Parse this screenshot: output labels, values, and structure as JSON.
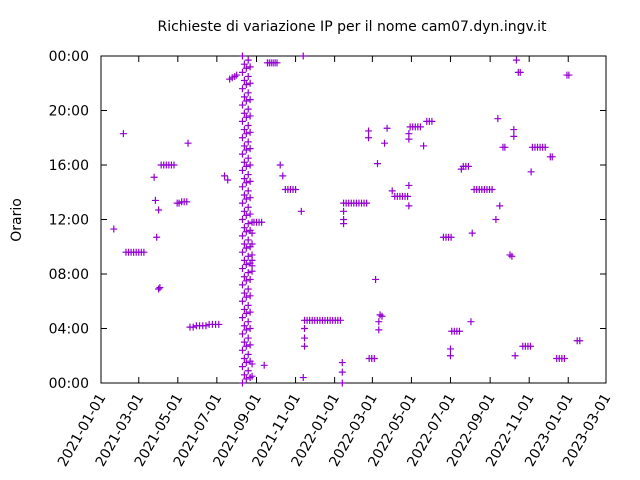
{
  "chart_data": {
    "type": "scatter",
    "title": "Richieste di variazione IP per il nome cam07.dyn.ingv.it",
    "xlabel": "",
    "ylabel": "Orario",
    "x_range": [
      "2021-01-01",
      "2023-03-01"
    ],
    "y_range": [
      0,
      24
    ],
    "x_ticks": [
      "2021-01-01",
      "2021-03-01",
      "2021-05-01",
      "2021-07-01",
      "2021-09-01",
      "2021-11-01",
      "2022-01-01",
      "2022-03-01",
      "2022-05-01",
      "2022-07-01",
      "2022-09-01",
      "2022-11-01",
      "2023-01-01",
      "2023-03-01"
    ],
    "y_ticks": [
      {
        "value": 0,
        "label": "00:00"
      },
      {
        "value": 4,
        "label": "04:00"
      },
      {
        "value": 8,
        "label": "08:00"
      },
      {
        "value": 12,
        "label": "12:00"
      },
      {
        "value": 16,
        "label": "16:00"
      },
      {
        "value": 20,
        "label": "20:00"
      },
      {
        "value": 24,
        "label": "00:00"
      }
    ],
    "grid": false,
    "marker": "plus",
    "color": "#9400d3",
    "points": [
      [
        "2021-01-21",
        11.3
      ],
      [
        "2021-02-05",
        18.3
      ],
      [
        "2021-02-09",
        9.6
      ],
      [
        "2021-02-13",
        9.6
      ],
      [
        "2021-02-17",
        9.6
      ],
      [
        "2021-02-21",
        9.6
      ],
      [
        "2021-02-25",
        9.6
      ],
      [
        "2021-03-01",
        9.6
      ],
      [
        "2021-03-05",
        9.6
      ],
      [
        "2021-03-09",
        9.6
      ],
      [
        "2021-03-25",
        15.1
      ],
      [
        "2021-03-27",
        13.4
      ],
      [
        "2021-03-29",
        10.7
      ],
      [
        "2021-04-01",
        12.7
      ],
      [
        "2021-04-01",
        6.9
      ],
      [
        "2021-04-03",
        7.0
      ],
      [
        "2021-04-05",
        16.0
      ],
      [
        "2021-04-09",
        16.0
      ],
      [
        "2021-04-13",
        16.0
      ],
      [
        "2021-04-17",
        16.0
      ],
      [
        "2021-04-21",
        16.0
      ],
      [
        "2021-04-25",
        16.0
      ],
      [
        "2021-04-30",
        13.2
      ],
      [
        "2021-05-03",
        13.2
      ],
      [
        "2021-05-07",
        13.3
      ],
      [
        "2021-05-11",
        13.3
      ],
      [
        "2021-05-15",
        13.3
      ],
      [
        "2021-05-17",
        17.6
      ],
      [
        "2021-05-20",
        4.1
      ],
      [
        "2021-05-25",
        4.1
      ],
      [
        "2021-05-30",
        4.2
      ],
      [
        "2021-06-04",
        4.2
      ],
      [
        "2021-06-09",
        4.2
      ],
      [
        "2021-06-14",
        4.2
      ],
      [
        "2021-06-19",
        4.3
      ],
      [
        "2021-06-24",
        4.3
      ],
      [
        "2021-06-29",
        4.3
      ],
      [
        "2021-07-04",
        4.3
      ],
      [
        "2021-07-13",
        15.2
      ],
      [
        "2021-07-18",
        14.9
      ],
      [
        "2021-07-21",
        22.3
      ],
      [
        "2021-07-25",
        22.4
      ],
      [
        "2021-07-29",
        22.5
      ],
      [
        "2021-08-01",
        22.6
      ],
      [
        "2021-08-10",
        0.0
      ],
      [
        "2021-08-10",
        1.2
      ],
      [
        "2021-08-10",
        2.4
      ],
      [
        "2021-08-10",
        3.6
      ],
      [
        "2021-08-10",
        4.8
      ],
      [
        "2021-08-10",
        6.0
      ],
      [
        "2021-08-10",
        7.2
      ],
      [
        "2021-08-10",
        8.4
      ],
      [
        "2021-08-10",
        9.6
      ],
      [
        "2021-08-10",
        10.8
      ],
      [
        "2021-08-10",
        12.0
      ],
      [
        "2021-08-10",
        13.2
      ],
      [
        "2021-08-10",
        14.4
      ],
      [
        "2021-08-10",
        15.6
      ],
      [
        "2021-08-10",
        16.8
      ],
      [
        "2021-08-10",
        18.0
      ],
      [
        "2021-08-10",
        19.2
      ],
      [
        "2021-08-10",
        20.4
      ],
      [
        "2021-08-10",
        21.6
      ],
      [
        "2021-08-10",
        22.8
      ],
      [
        "2021-08-10",
        24.0
      ],
      [
        "2021-08-13",
        0.6
      ],
      [
        "2021-08-13",
        1.8
      ],
      [
        "2021-08-13",
        3.0
      ],
      [
        "2021-08-13",
        4.2
      ],
      [
        "2021-08-13",
        5.4
      ],
      [
        "2021-08-13",
        6.6
      ],
      [
        "2021-08-13",
        7.8
      ],
      [
        "2021-08-13",
        9.0
      ],
      [
        "2021-08-13",
        10.2
      ],
      [
        "2021-08-13",
        11.4
      ],
      [
        "2021-08-13",
        12.6
      ],
      [
        "2021-08-13",
        13.8
      ],
      [
        "2021-08-13",
        15.0
      ],
      [
        "2021-08-13",
        16.2
      ],
      [
        "2021-08-13",
        17.4
      ],
      [
        "2021-08-13",
        18.6
      ],
      [
        "2021-08-13",
        19.8
      ],
      [
        "2021-08-13",
        21.0
      ],
      [
        "2021-08-13",
        22.2
      ],
      [
        "2021-08-13",
        23.4
      ],
      [
        "2021-08-16",
        0.3
      ],
      [
        "2021-08-16",
        1.5
      ],
      [
        "2021-08-16",
        2.7
      ],
      [
        "2021-08-16",
        3.9
      ],
      [
        "2021-08-16",
        5.1
      ],
      [
        "2021-08-16",
        6.3
      ],
      [
        "2021-08-16",
        7.5
      ],
      [
        "2021-08-16",
        8.7
      ],
      [
        "2021-08-16",
        9.9
      ],
      [
        "2021-08-16",
        11.1
      ],
      [
        "2021-08-16",
        12.3
      ],
      [
        "2021-08-16",
        13.5
      ],
      [
        "2021-08-16",
        14.7
      ],
      [
        "2021-08-16",
        15.9
      ],
      [
        "2021-08-16",
        17.1
      ],
      [
        "2021-08-16",
        18.3
      ],
      [
        "2021-08-16",
        19.5
      ],
      [
        "2021-08-16",
        20.7
      ],
      [
        "2021-08-16",
        21.9
      ],
      [
        "2021-08-16",
        23.1
      ],
      [
        "2021-08-19",
        0.9
      ],
      [
        "2021-08-19",
        2.1
      ],
      [
        "2021-08-19",
        3.3
      ],
      [
        "2021-08-19",
        4.5
      ],
      [
        "2021-08-19",
        5.7
      ],
      [
        "2021-08-19",
        6.9
      ],
      [
        "2021-08-19",
        8.1
      ],
      [
        "2021-08-19",
        9.3
      ],
      [
        "2021-08-19",
        10.5
      ],
      [
        "2021-08-19",
        11.7
      ],
      [
        "2021-08-19",
        12.9
      ],
      [
        "2021-08-19",
        14.1
      ],
      [
        "2021-08-19",
        15.3
      ],
      [
        "2021-08-19",
        16.5
      ],
      [
        "2021-08-19",
        17.7
      ],
      [
        "2021-08-19",
        18.9
      ],
      [
        "2021-08-19",
        20.1
      ],
      [
        "2021-08-19",
        21.3
      ],
      [
        "2021-08-19",
        22.5
      ],
      [
        "2021-08-19",
        23.7
      ],
      [
        "2021-08-22",
        0.4
      ],
      [
        "2021-08-22",
        1.6
      ],
      [
        "2021-08-22",
        2.8
      ],
      [
        "2021-08-22",
        4.0
      ],
      [
        "2021-08-22",
        5.2
      ],
      [
        "2021-08-22",
        6.4
      ],
      [
        "2021-08-22",
        7.6
      ],
      [
        "2021-08-22",
        8.8
      ],
      [
        "2021-08-22",
        10.0
      ],
      [
        "2021-08-22",
        11.2
      ],
      [
        "2021-08-22",
        12.4
      ],
      [
        "2021-08-22",
        13.6
      ],
      [
        "2021-08-22",
        14.8
      ],
      [
        "2021-08-22",
        16.0
      ],
      [
        "2021-08-22",
        17.2
      ],
      [
        "2021-08-22",
        18.4
      ],
      [
        "2021-08-22",
        19.6
      ],
      [
        "2021-08-22",
        20.8
      ],
      [
        "2021-08-22",
        22.0
      ],
      [
        "2021-08-22",
        23.2
      ],
      [
        "2021-08-25",
        8.2
      ],
      [
        "2021-08-25",
        8.6
      ],
      [
        "2021-08-25",
        9.0
      ],
      [
        "2021-08-25",
        9.4
      ],
      [
        "2021-08-25",
        10.2
      ],
      [
        "2021-08-25",
        11.0
      ],
      [
        "2021-08-25",
        11.8
      ],
      [
        "2021-08-25",
        0.5
      ],
      [
        "2021-08-25",
        1.4
      ],
      [
        "2021-08-28",
        11.8
      ],
      [
        "2021-09-01",
        11.8
      ],
      [
        "2021-09-05",
        11.8
      ],
      [
        "2021-09-09",
        11.8
      ],
      [
        "2021-09-13",
        1.3
      ],
      [
        "2021-09-18",
        23.5
      ],
      [
        "2021-09-21",
        23.5
      ],
      [
        "2021-09-24",
        23.5
      ],
      [
        "2021-09-27",
        23.5
      ],
      [
        "2021-09-30",
        23.5
      ],
      [
        "2021-10-03",
        23.5
      ],
      [
        "2021-10-08",
        16.0
      ],
      [
        "2021-10-12",
        15.2
      ],
      [
        "2021-10-16",
        14.2
      ],
      [
        "2021-10-20",
        14.2
      ],
      [
        "2021-10-24",
        14.2
      ],
      [
        "2021-10-28",
        14.2
      ],
      [
        "2021-11-01",
        14.2
      ],
      [
        "2021-11-10",
        12.6
      ],
      [
        "2021-11-13",
        0.4
      ],
      [
        "2021-11-13",
        24.0
      ],
      [
        "2021-11-15",
        4.6
      ],
      [
        "2021-11-19",
        4.6
      ],
      [
        "2021-11-23",
        4.6
      ],
      [
        "2021-11-27",
        4.6
      ],
      [
        "2021-12-01",
        4.6
      ],
      [
        "2021-12-05",
        4.6
      ],
      [
        "2021-12-09",
        4.6
      ],
      [
        "2021-12-13",
        4.6
      ],
      [
        "2021-12-17",
        4.6
      ],
      [
        "2021-12-21",
        4.6
      ],
      [
        "2021-12-25",
        4.6
      ],
      [
        "2021-12-29",
        4.6
      ],
      [
        "2022-01-02",
        4.6
      ],
      [
        "2022-01-06",
        4.6
      ],
      [
        "2022-01-10",
        4.6
      ],
      [
        "2021-11-15",
        4.0
      ],
      [
        "2021-11-15",
        3.3
      ],
      [
        "2021-11-15",
        2.7
      ],
      [
        "2022-01-13",
        1.5
      ],
      [
        "2022-01-13",
        0.8
      ],
      [
        "2022-01-13",
        0.0
      ],
      [
        "2022-01-15",
        13.2
      ],
      [
        "2022-01-19",
        13.2
      ],
      [
        "2022-01-23",
        13.2
      ],
      [
        "2022-01-27",
        13.2
      ],
      [
        "2022-01-31",
        13.2
      ],
      [
        "2022-02-04",
        13.2
      ],
      [
        "2022-02-08",
        13.2
      ],
      [
        "2022-02-12",
        13.2
      ],
      [
        "2022-02-16",
        13.2
      ],
      [
        "2022-02-20",
        13.2
      ],
      [
        "2022-01-15",
        12.6
      ],
      [
        "2022-01-15",
        12.0
      ],
      [
        "2022-01-15",
        11.7
      ],
      [
        "2022-02-23",
        18.5
      ],
      [
        "2022-02-23",
        18.0
      ],
      [
        "2022-02-24",
        1.8
      ],
      [
        "2022-02-28",
        1.8
      ],
      [
        "2022-03-04",
        1.8
      ],
      [
        "2022-03-06",
        7.6
      ],
      [
        "2022-03-09",
        16.1
      ],
      [
        "2022-03-11",
        4.5
      ],
      [
        "2022-03-11",
        3.9
      ],
      [
        "2022-03-13",
        5.0
      ],
      [
        "2022-03-16",
        4.9
      ],
      [
        "2022-03-20",
        17.6
      ],
      [
        "2022-03-24",
        18.7
      ],
      [
        "2022-04-01",
        14.1
      ],
      [
        "2022-04-05",
        13.7
      ],
      [
        "2022-04-09",
        13.7
      ],
      [
        "2022-04-13",
        13.7
      ],
      [
        "2022-04-17",
        13.7
      ],
      [
        "2022-04-21",
        13.7
      ],
      [
        "2022-04-25",
        13.7
      ],
      [
        "2022-04-27",
        14.5
      ],
      [
        "2022-04-27",
        13.0
      ],
      [
        "2022-04-27",
        18.3
      ],
      [
        "2022-04-27",
        17.9
      ],
      [
        "2022-04-29",
        18.8
      ],
      [
        "2022-05-03",
        18.8
      ],
      [
        "2022-05-07",
        18.8
      ],
      [
        "2022-05-11",
        18.8
      ],
      [
        "2022-05-15",
        18.8
      ],
      [
        "2022-05-20",
        17.4
      ],
      [
        "2022-05-25",
        19.2
      ],
      [
        "2022-05-29",
        19.2
      ],
      [
        "2022-06-02",
        19.2
      ],
      [
        "2022-06-20",
        10.7
      ],
      [
        "2022-06-24",
        10.7
      ],
      [
        "2022-06-28",
        10.7
      ],
      [
        "2022-07-02",
        10.7
      ],
      [
        "2022-07-01",
        2.5
      ],
      [
        "2022-07-01",
        2.0
      ],
      [
        "2022-07-03",
        3.8
      ],
      [
        "2022-07-07",
        3.8
      ],
      [
        "2022-07-11",
        3.8
      ],
      [
        "2022-07-15",
        3.8
      ],
      [
        "2022-07-18",
        15.7
      ],
      [
        "2022-07-21",
        15.9
      ],
      [
        "2022-07-25",
        15.9
      ],
      [
        "2022-07-29",
        15.9
      ],
      [
        "2022-08-02",
        4.5
      ],
      [
        "2022-08-04",
        11.0
      ],
      [
        "2022-08-07",
        14.2
      ],
      [
        "2022-08-11",
        14.2
      ],
      [
        "2022-08-15",
        14.2
      ],
      [
        "2022-08-19",
        14.2
      ],
      [
        "2022-08-23",
        14.2
      ],
      [
        "2022-08-27",
        14.2
      ],
      [
        "2022-08-31",
        14.2
      ],
      [
        "2022-09-04",
        14.2
      ],
      [
        "2022-09-10",
        12.0
      ],
      [
        "2022-09-13",
        19.4
      ],
      [
        "2022-09-16",
        13.0
      ],
      [
        "2022-09-21",
        17.3
      ],
      [
        "2022-09-24",
        17.3
      ],
      [
        "2022-10-02",
        9.4
      ],
      [
        "2022-10-05",
        9.3
      ],
      [
        "2022-10-08",
        18.6
      ],
      [
        "2022-10-08",
        18.1
      ],
      [
        "2022-10-10",
        2.0
      ],
      [
        "2022-10-12",
        23.7
      ],
      [
        "2022-10-15",
        22.8
      ],
      [
        "2022-10-18",
        22.8
      ],
      [
        "2022-10-22",
        2.7
      ],
      [
        "2022-10-26",
        2.7
      ],
      [
        "2022-10-30",
        2.7
      ],
      [
        "2022-11-03",
        2.7
      ],
      [
        "2022-11-04",
        15.5
      ],
      [
        "2022-11-06",
        17.3
      ],
      [
        "2022-11-10",
        17.3
      ],
      [
        "2022-11-14",
        17.3
      ],
      [
        "2022-11-18",
        17.3
      ],
      [
        "2022-11-22",
        17.3
      ],
      [
        "2022-11-26",
        17.3
      ],
      [
        "2022-12-04",
        16.6
      ],
      [
        "2022-12-07",
        16.6
      ],
      [
        "2022-12-14",
        1.8
      ],
      [
        "2022-12-18",
        1.8
      ],
      [
        "2022-12-22",
        1.8
      ],
      [
        "2022-12-26",
        1.8
      ],
      [
        "2022-12-30",
        22.6
      ],
      [
        "2023-01-02",
        22.6
      ],
      [
        "2023-01-15",
        3.1
      ],
      [
        "2023-01-19",
        3.1
      ]
    ]
  }
}
